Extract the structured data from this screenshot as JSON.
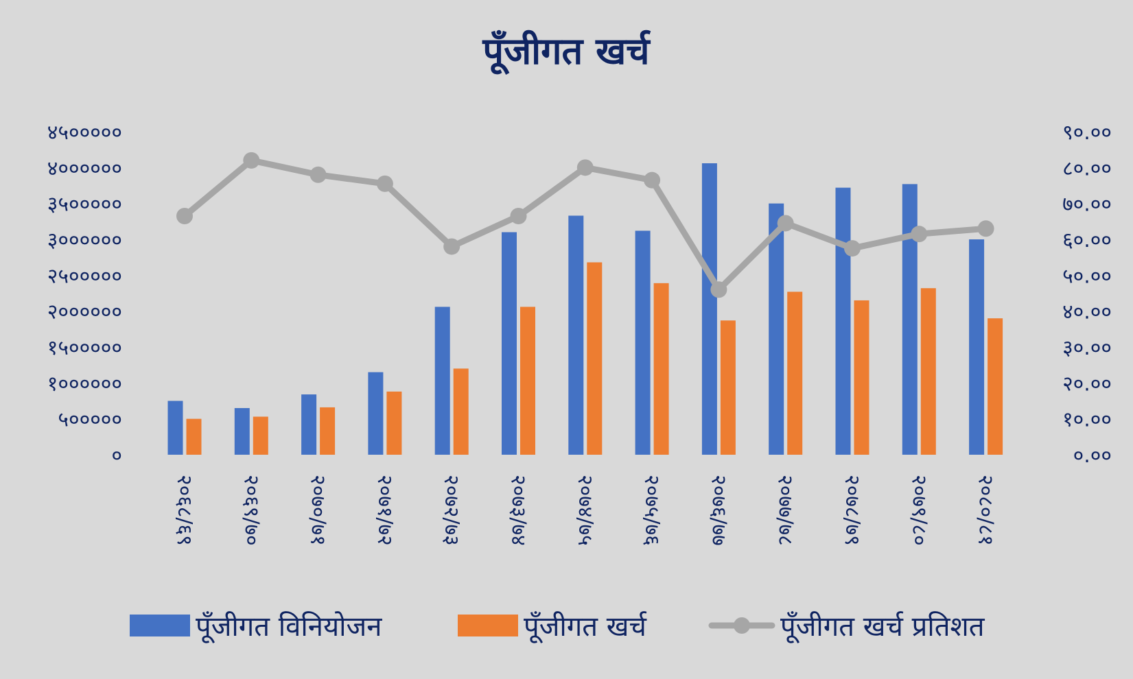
{
  "chart_data": {
    "type": "bar",
    "title": "पूँजीगत खर्च",
    "categories": [
      "२०६८/६९",
      "२०६९/७०",
      "२०७०/७१",
      "२०७१/७२",
      "२०७२/७३",
      "२०७३/७४",
      "२०७४/७५",
      "२०७५/७६",
      "२०७६/७७",
      "२०७७/७८",
      "२०७८/७९",
      "२०७९/८०",
      "२०८०/८१"
    ],
    "series": [
      {
        "name": "पूँजीगत विनियोजन",
        "kind": "bar",
        "axis": "left",
        "color": "#4472c4",
        "values": [
          750000,
          650000,
          840000,
          1150000,
          2060000,
          3100000,
          3330000,
          3120000,
          4060000,
          3500000,
          3720000,
          3770000,
          3000000
        ]
      },
      {
        "name": "पूँजीगत खर्च",
        "kind": "bar",
        "axis": "left",
        "color": "#ed7d31",
        "values": [
          500000,
          530000,
          660000,
          880000,
          1200000,
          2060000,
          2680000,
          2390000,
          1870000,
          2270000,
          2150000,
          2320000,
          1900000
        ]
      },
      {
        "name": "पूँजीगत खर्च प्रतिशत",
        "kind": "line",
        "axis": "right",
        "color": "#a6a6a6",
        "values": [
          66.5,
          82.0,
          78.0,
          75.5,
          58.0,
          66.5,
          80.0,
          76.5,
          46.0,
          64.5,
          57.5,
          61.5,
          63.0
        ]
      }
    ],
    "y_left": {
      "ylim": [
        0,
        4500000
      ],
      "ticks": [
        0,
        500000,
        1000000,
        1500000,
        2000000,
        2500000,
        3000000,
        3500000,
        4000000,
        4500000
      ],
      "tick_labels": [
        "०",
        "५०००००",
        "१००००००",
        "१५०००००",
        "२००००००",
        "२५०००००",
        "३००००००",
        "३५०००००",
        "४००००००",
        "४५०००००"
      ]
    },
    "y_right": {
      "ylim": [
        0,
        90
      ],
      "ticks": [
        0,
        10,
        20,
        30,
        40,
        50,
        60,
        70,
        80,
        90
      ],
      "tick_labels": [
        "०.००",
        "१०.००",
        "२०.००",
        "३०.००",
        "४०.००",
        "५०.००",
        "६०.००",
        "७०.००",
        "८०.००",
        "९०.००"
      ]
    },
    "xlabel": "",
    "ylabel": "",
    "grid": false,
    "legend_position": "bottom"
  }
}
